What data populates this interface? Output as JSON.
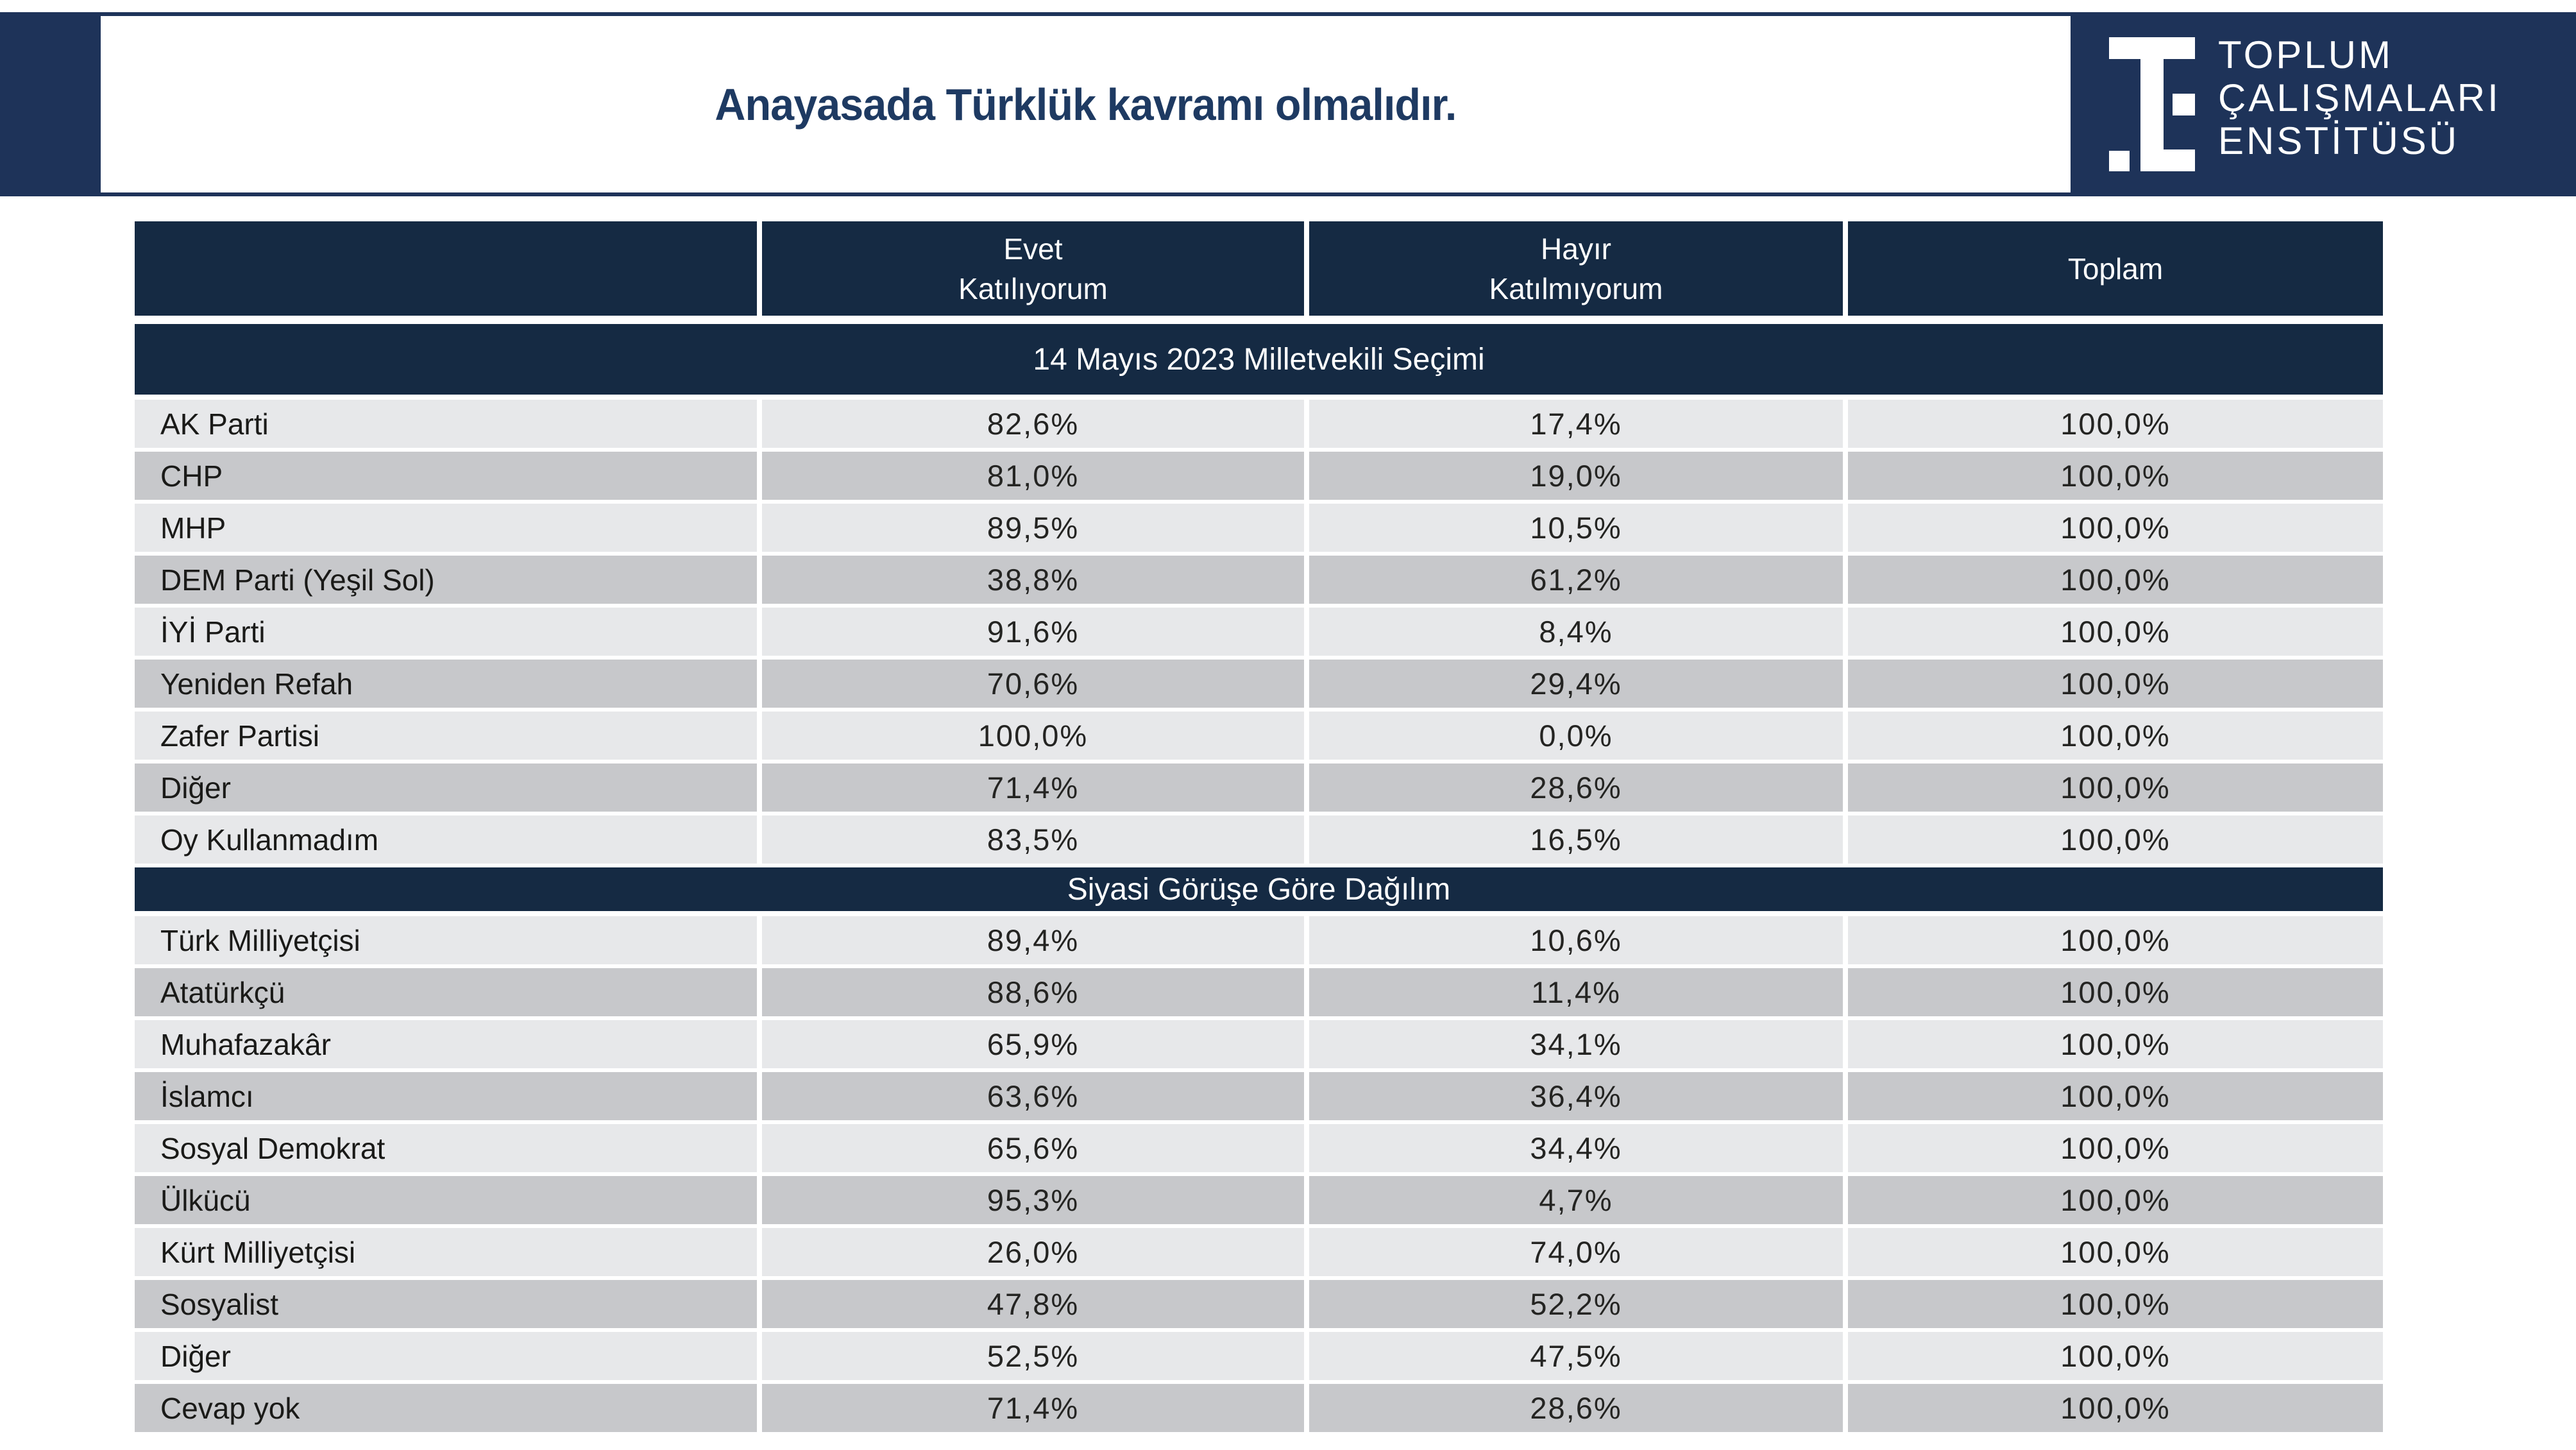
{
  "colors": {
    "banner_navy": "#1E3359",
    "header_navy": "#152A43",
    "row_light": "#E7E8EA",
    "row_dark": "#C7C8CB",
    "title_navy": "#1E3A62"
  },
  "header": {
    "title": "Anayasada Türklük kavramı olmalıdır.",
    "logo": {
      "line1": "TOPLUM",
      "line2": "ÇALIŞMALARI",
      "line3": "ENSTİTÜSÜ"
    }
  },
  "table": {
    "columns": [
      {
        "line1": "Evet",
        "line2": "Katılıyorum"
      },
      {
        "line1": "Hayır",
        "line2": "Katılmıyorum"
      },
      {
        "line1": "Toplam",
        "line2": ""
      }
    ],
    "sections": [
      {
        "title": "14 Mayıs 2023 Milletvekili Seçimi",
        "rows": [
          {
            "label": "AK Parti",
            "evet": "82,6%",
            "hayir": "17,4%",
            "toplam": "100,0%"
          },
          {
            "label": "CHP",
            "evet": "81,0%",
            "hayir": "19,0%",
            "toplam": "100,0%"
          },
          {
            "label": "MHP",
            "evet": "89,5%",
            "hayir": "10,5%",
            "toplam": "100,0%"
          },
          {
            "label": "DEM Parti (Yeşil Sol)",
            "evet": "38,8%",
            "hayir": "61,2%",
            "toplam": "100,0%"
          },
          {
            "label": "İYİ Parti",
            "evet": "91,6%",
            "hayir": "8,4%",
            "toplam": "100,0%"
          },
          {
            "label": "Yeniden Refah",
            "evet": "70,6%",
            "hayir": "29,4%",
            "toplam": "100,0%"
          },
          {
            "label": "Zafer Partisi",
            "evet": "100,0%",
            "hayir": "0,0%",
            "toplam": "100,0%"
          },
          {
            "label": "Diğer",
            "evet": "71,4%",
            "hayir": "28,6%",
            "toplam": "100,0%"
          },
          {
            "label": "Oy Kullanmadım",
            "evet": "83,5%",
            "hayir": "16,5%",
            "toplam": "100,0%"
          }
        ]
      },
      {
        "title": "Siyasi Görüşe Göre Dağılım",
        "rows": [
          {
            "label": "Türk Milliyetçisi",
            "evet": "89,4%",
            "hayir": "10,6%",
            "toplam": "100,0%"
          },
          {
            "label": "Atatürkçü",
            "evet": "88,6%",
            "hayir": "11,4%",
            "toplam": "100,0%"
          },
          {
            "label": "Muhafazakâr",
            "evet": "65,9%",
            "hayir": "34,1%",
            "toplam": "100,0%"
          },
          {
            "label": "İslamcı",
            "evet": "63,6%",
            "hayir": "36,4%",
            "toplam": "100,0%"
          },
          {
            "label": "Sosyal Demokrat",
            "evet": "65,6%",
            "hayir": "34,4%",
            "toplam": "100,0%"
          },
          {
            "label": "Ülkücü",
            "evet": "95,3%",
            "hayir": "4,7%",
            "toplam": "100,0%"
          },
          {
            "label": "Kürt Milliyetçisi",
            "evet": "26,0%",
            "hayir": "74,0%",
            "toplam": "100,0%"
          },
          {
            "label": "Sosyalist",
            "evet": "47,8%",
            "hayir": "52,2%",
            "toplam": "100,0%"
          },
          {
            "label": "Diğer",
            "evet": "52,5%",
            "hayir": "47,5%",
            "toplam": "100,0%"
          },
          {
            "label": "Cevap yok",
            "evet": "71,4%",
            "hayir": "28,6%",
            "toplam": "100,0%"
          }
        ]
      }
    ]
  }
}
